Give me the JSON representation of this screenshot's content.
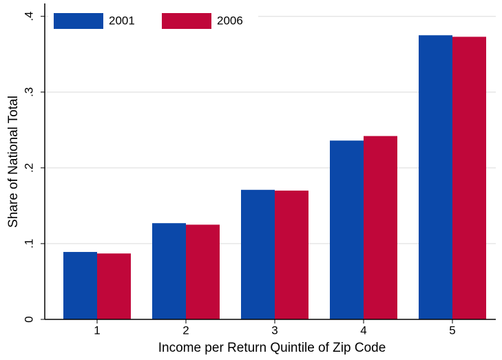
{
  "chart_data": {
    "type": "bar",
    "x_label": "Income per Return Quintile of Zip Code",
    "y_label": "Share of National Total",
    "categories": [
      "1",
      "2",
      "3",
      "4",
      "5"
    ],
    "series": [
      {
        "name": "2001",
        "color": "#0b48a9",
        "values": [
          0.089,
          0.127,
          0.171,
          0.236,
          0.375
        ]
      },
      {
        "name": "2006",
        "color": "#c0073a",
        "values": [
          0.087,
          0.125,
          0.17,
          0.242,
          0.373
        ]
      }
    ],
    "ylim": [
      0,
      0.417
    ],
    "yticks": [
      0,
      {
        "value": 0.1,
        "label": ".1"
      },
      {
        "value": 0.2,
        "label": ".2"
      },
      {
        "value": 0.3,
        "label": ".3"
      },
      {
        "value": 0.4,
        "label": ".4"
      }
    ],
    "grid": true,
    "legend": "upper left"
  }
}
